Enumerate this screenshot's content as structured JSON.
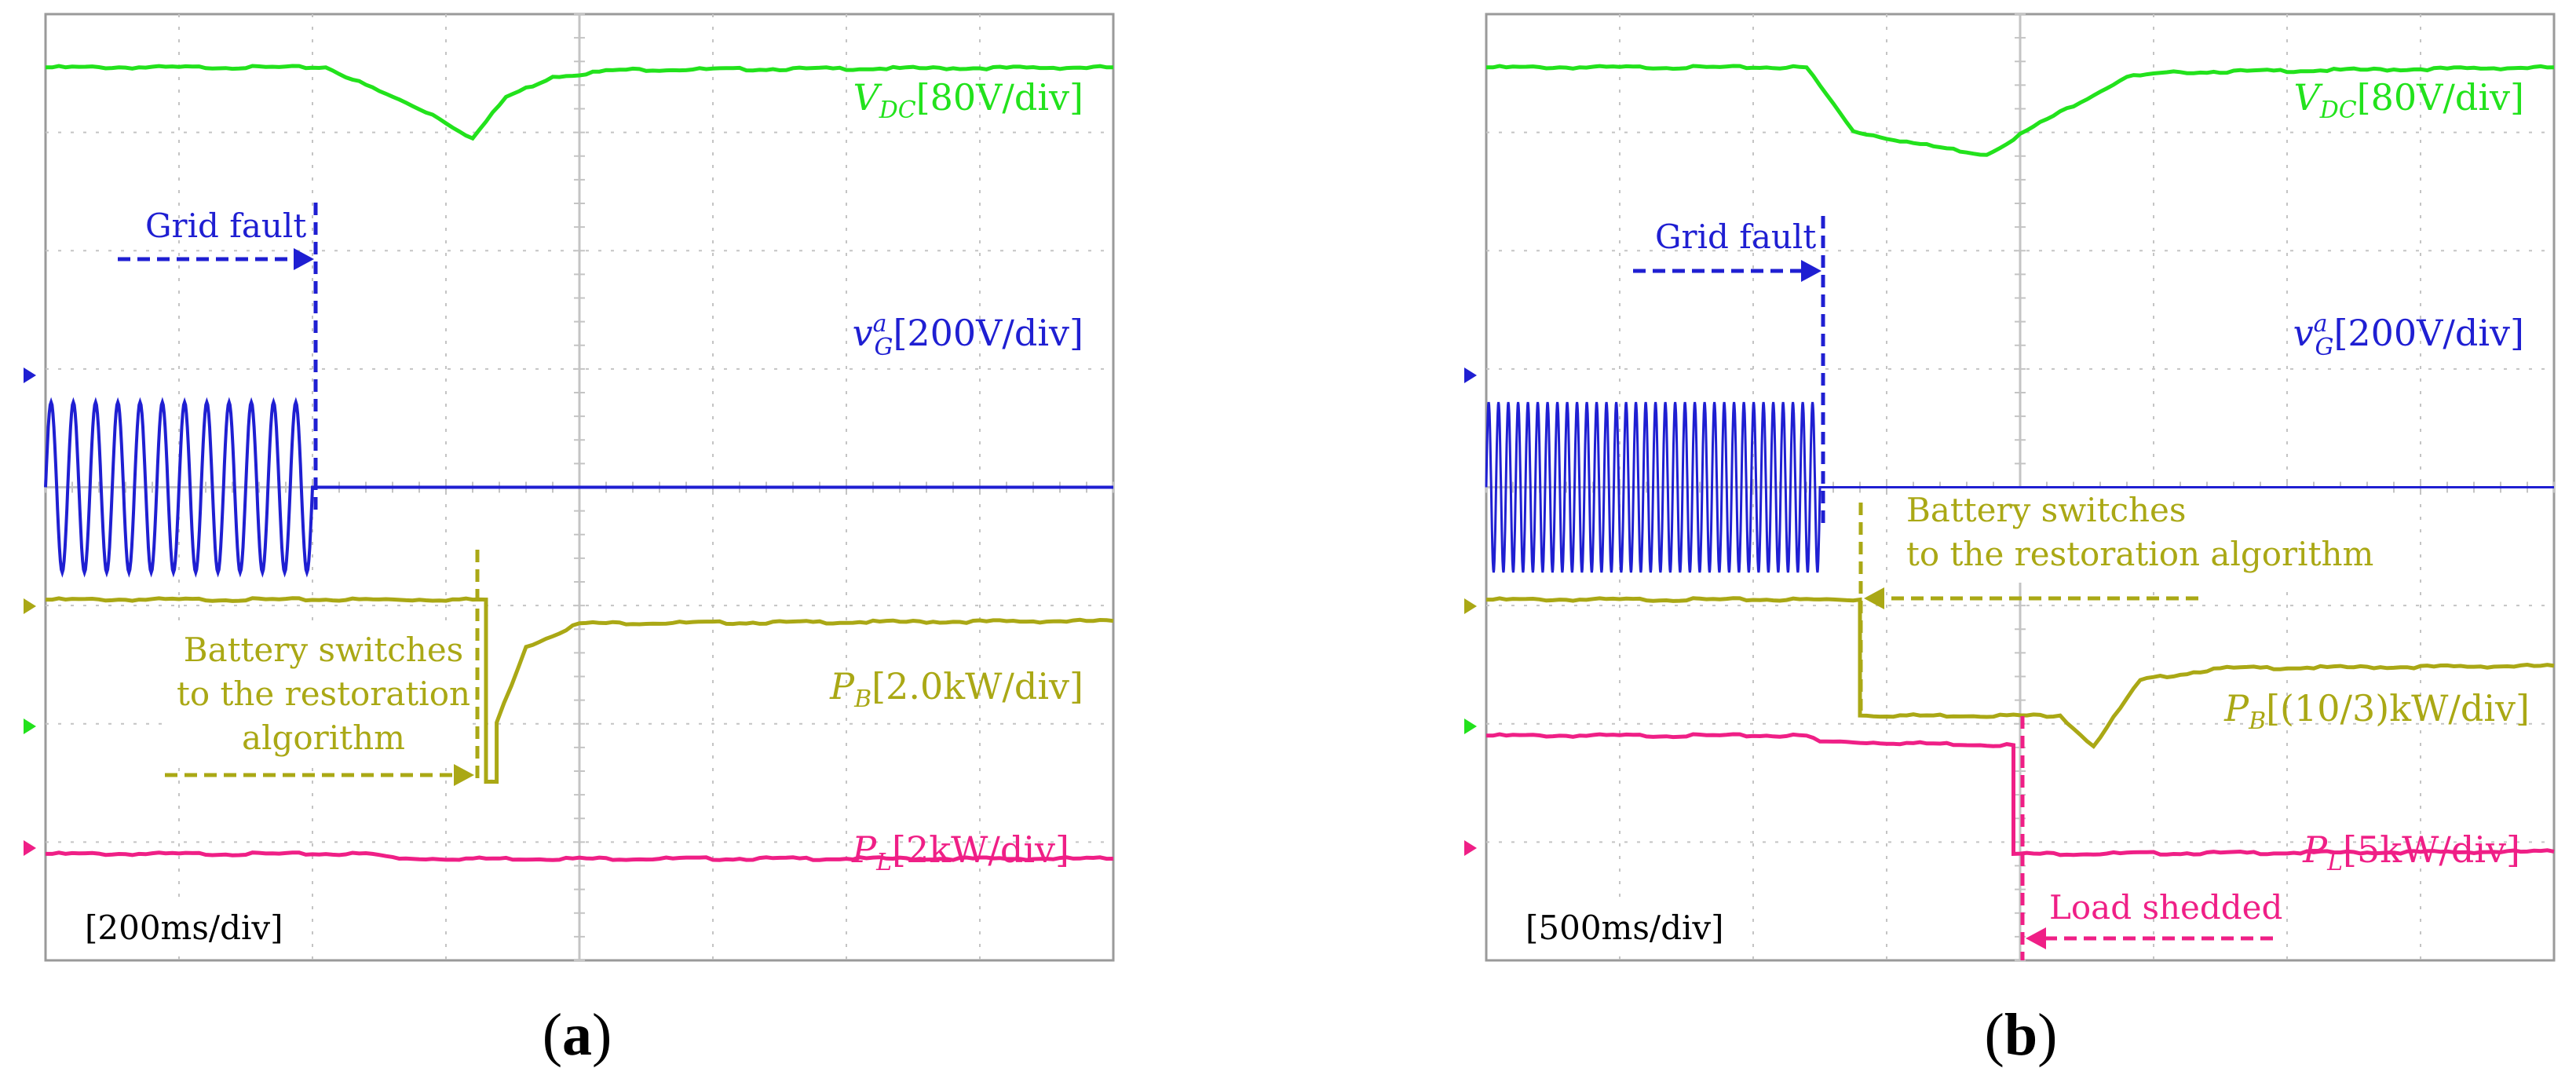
{
  "panels": [
    {
      "label": "(a)",
      "label_parts": {
        "open": "(",
        "letter": "a",
        "close": ")"
      },
      "time_div": "[200ms/div]",
      "traces": {
        "vdc": {
          "sym": "V",
          "sub": "DC",
          "sup": "",
          "scale": "[80V/div]",
          "color": "#22e21c"
        },
        "vg": {
          "sym": "v",
          "sub": "G",
          "sup": "a",
          "scale": "[200V/div]",
          "color": "#1f1fd2"
        },
        "pb": {
          "sym": "P",
          "sub": "B",
          "sup": "",
          "scale": "[2.0kW/div]",
          "color": "#aaa815"
        },
        "pl": {
          "sym": "P",
          "sub": "L",
          "sup": "",
          "scale": "[2kW/div]",
          "color": "#ef1f86"
        }
      },
      "annotations": {
        "grid_fault": "Grid fault",
        "battery": [
          "Battery switches",
          "to the restoration",
          "algorithm"
        ]
      }
    },
    {
      "label": "(b)",
      "label_parts": {
        "open": "(",
        "letter": "b",
        "close": ")"
      },
      "time_div": "[500ms/div]",
      "traces": {
        "vdc": {
          "sym": "V",
          "sub": "DC",
          "sup": "",
          "scale": "[80V/div]",
          "color": "#22e21c"
        },
        "vg": {
          "sym": "v",
          "sub": "G",
          "sup": "a",
          "scale": "[200V/div]",
          "color": "#1f1fd2"
        },
        "pb": {
          "sym": "P",
          "sub": "B",
          "sup": "",
          "scale": "[(10/3)kW/div]",
          "color": "#aaa815"
        },
        "pl": {
          "sym": "P",
          "sub": "L",
          "sup": "",
          "scale": "[5kW/div]",
          "color": "#ef1f86"
        }
      },
      "annotations": {
        "grid_fault": "Grid fault",
        "battery": [
          "Battery switches",
          "to the restoration algorithm"
        ],
        "load_shed": "Load shedded"
      }
    }
  ],
  "colors": {
    "grid": "#c4c4c4",
    "frame": "#9a9a9a",
    "marker_vg": "#1f1fd2",
    "marker_pb": "#aaa815",
    "marker_pl": "#ef1f86",
    "marker_vdc": "#22e21c"
  },
  "chart_data": [
    {
      "type": "line",
      "xlabel": "[200ms/div]",
      "x_range_div": [
        0,
        8
      ],
      "y_range_div": [
        0,
        8
      ],
      "series": [
        {
          "name": "V_DC [80V/div]",
          "x": [
            0,
            2.1,
            2.5,
            2.9,
            3.2,
            3.45,
            3.8,
            4.3,
            8
          ],
          "y": [
            6.6,
            6.6,
            6.4,
            6.2,
            6.0,
            6.35,
            6.52,
            6.58,
            6.6
          ]
        },
        {
          "name": "v_G^a [200V/div]",
          "x": [
            0,
            2.0,
            2.0,
            8
          ],
          "y": [
            4.0,
            4.0,
            4.0,
            4.0
          ],
          "ac_until_x": 2.0,
          "ac_amplitude_div": 0.72,
          "ac_cycles": 12
        },
        {
          "name": "P_B [2.0kW/div]",
          "x": [
            0,
            3.3,
            3.3,
            3.38,
            3.38,
            3.6,
            4.0,
            8
          ],
          "y": [
            2.6,
            2.6,
            1.06,
            1.06,
            1.56,
            2.2,
            2.4,
            2.42
          ]
        },
        {
          "name": "P_L [2kW/div]",
          "x": [
            0,
            2.45,
            2.65,
            8
          ],
          "y": [
            0.0,
            0.0,
            -0.04,
            -0.04
          ]
        }
      ]
    },
    {
      "type": "line",
      "xlabel": "[500ms/div]",
      "x_range_div": [
        0,
        8
      ],
      "y_range_div": [
        0,
        8
      ],
      "series": [
        {
          "name": "V_DC [80V/div]",
          "x": [
            0,
            2.4,
            2.75,
            3.2,
            3.75,
            4.1,
            4.8,
            5.2,
            8
          ],
          "y": [
            6.6,
            6.6,
            6.06,
            5.96,
            5.86,
            6.1,
            6.52,
            6.56,
            6.6
          ]
        },
        {
          "name": "v_G^a [200V/div]",
          "x": [
            0,
            2.5,
            2.5,
            8
          ],
          "y": [
            4.0,
            4.0,
            4.0,
            4.0
          ],
          "ac_until_x": 2.5,
          "ac_amplitude_div": 0.72,
          "ac_cycles": 34
        },
        {
          "name": "P_B [(10/3)kW/div]",
          "x": [
            0,
            2.8,
            2.8,
            4.3,
            4.55,
            4.9,
            5.5,
            8
          ],
          "y": [
            2.6,
            2.6,
            1.62,
            1.62,
            1.36,
            1.92,
            2.02,
            2.04
          ]
        },
        {
          "name": "P_L [5kW/div]",
          "x": [
            0,
            2.4,
            2.5,
            3.95,
            3.95,
            8
          ],
          "y": [
            1.0,
            1.0,
            0.95,
            0.92,
            0.0,
            0.02
          ]
        }
      ]
    }
  ]
}
